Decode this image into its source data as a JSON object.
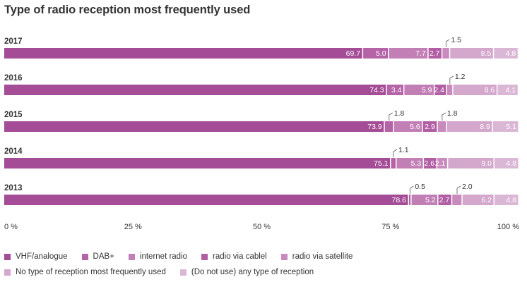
{
  "title": "Type of radio reception most frequently used",
  "chart_data": {
    "type": "bar",
    "orientation": "horizontal",
    "stacked": true,
    "title": "Type of radio reception most frequently used",
    "categories": [
      "2017",
      "2016",
      "2015",
      "2014",
      "2013"
    ],
    "series": [
      {
        "name": "VHF/analogue",
        "color": "#a44c96",
        "values": [
          69.7,
          74.3,
          73.9,
          75.1,
          78.6
        ]
      },
      {
        "name": "DAB+",
        "color": "#b563a7",
        "values": [
          5.0,
          3.4,
          1.8,
          1.1,
          0.5
        ]
      },
      {
        "name": "internet radio",
        "color": "#c27fb6",
        "values": [
          7.7,
          5.9,
          5.6,
          5.3,
          5.2
        ]
      },
      {
        "name": "radio via cablel",
        "color": "#b15ea4",
        "values": [
          2.7,
          2.4,
          2.9,
          2.6,
          2.7
        ]
      },
      {
        "name": "radio via satellite",
        "color": "#c98bbd",
        "values": [
          1.5,
          1.2,
          1.8,
          2.1,
          2.0
        ]
      },
      {
        "name": "No type of reception most frequently used",
        "color": "#d4a7cd",
        "values": [
          8.5,
          8.6,
          8.9,
          9.0,
          6.2
        ]
      },
      {
        "name": "(Do not use) any type of reception",
        "color": "#dbb7d6",
        "values": [
          4.8,
          4.1,
          5.1,
          4.8,
          4.8
        ]
      }
    ],
    "value_labels": [
      [
        "69.7",
        "5.0",
        "7.7",
        "2.7",
        "1.5",
        "8.5",
        "4.8"
      ],
      [
        "74.3",
        "3.4",
        "5.9",
        "2.4",
        "1.2",
        "8.6",
        "4.1"
      ],
      [
        "73.9",
        "1.8",
        "5.6",
        "2.9",
        "1.8",
        "8.9",
        "5.1"
      ],
      [
        "75.1",
        "1.1",
        "5.3",
        "2.6",
        "2.1",
        "9.0",
        "4.8"
      ],
      [
        "78.6",
        "0.5",
        "5.2",
        "2.7",
        "2.0",
        "6.2",
        "4.8"
      ]
    ],
    "xlim": [
      0,
      100
    ],
    "xticks": [
      0,
      25,
      50,
      75,
      100
    ],
    "xtick_labels": [
      "0 %",
      "25 %",
      "50 %",
      "75 %",
      "100 %"
    ],
    "grid": false,
    "legend_position": "bottom"
  },
  "legend": [
    {
      "label": "VHF/analogue",
      "color": "#a44c96"
    },
    {
      "label": "DAB+",
      "color": "#b563a7"
    },
    {
      "label": "internet radio",
      "color": "#c27fb6"
    },
    {
      "label": "radio via cablel",
      "color": "#b15ea4"
    },
    {
      "label": "radio via satellite",
      "color": "#c98bbd"
    },
    {
      "label": "No type of reception most frequently used",
      "color": "#d4a7cd"
    },
    {
      "label": "(Do not use) any type of reception",
      "color": "#dbb7d6"
    }
  ]
}
